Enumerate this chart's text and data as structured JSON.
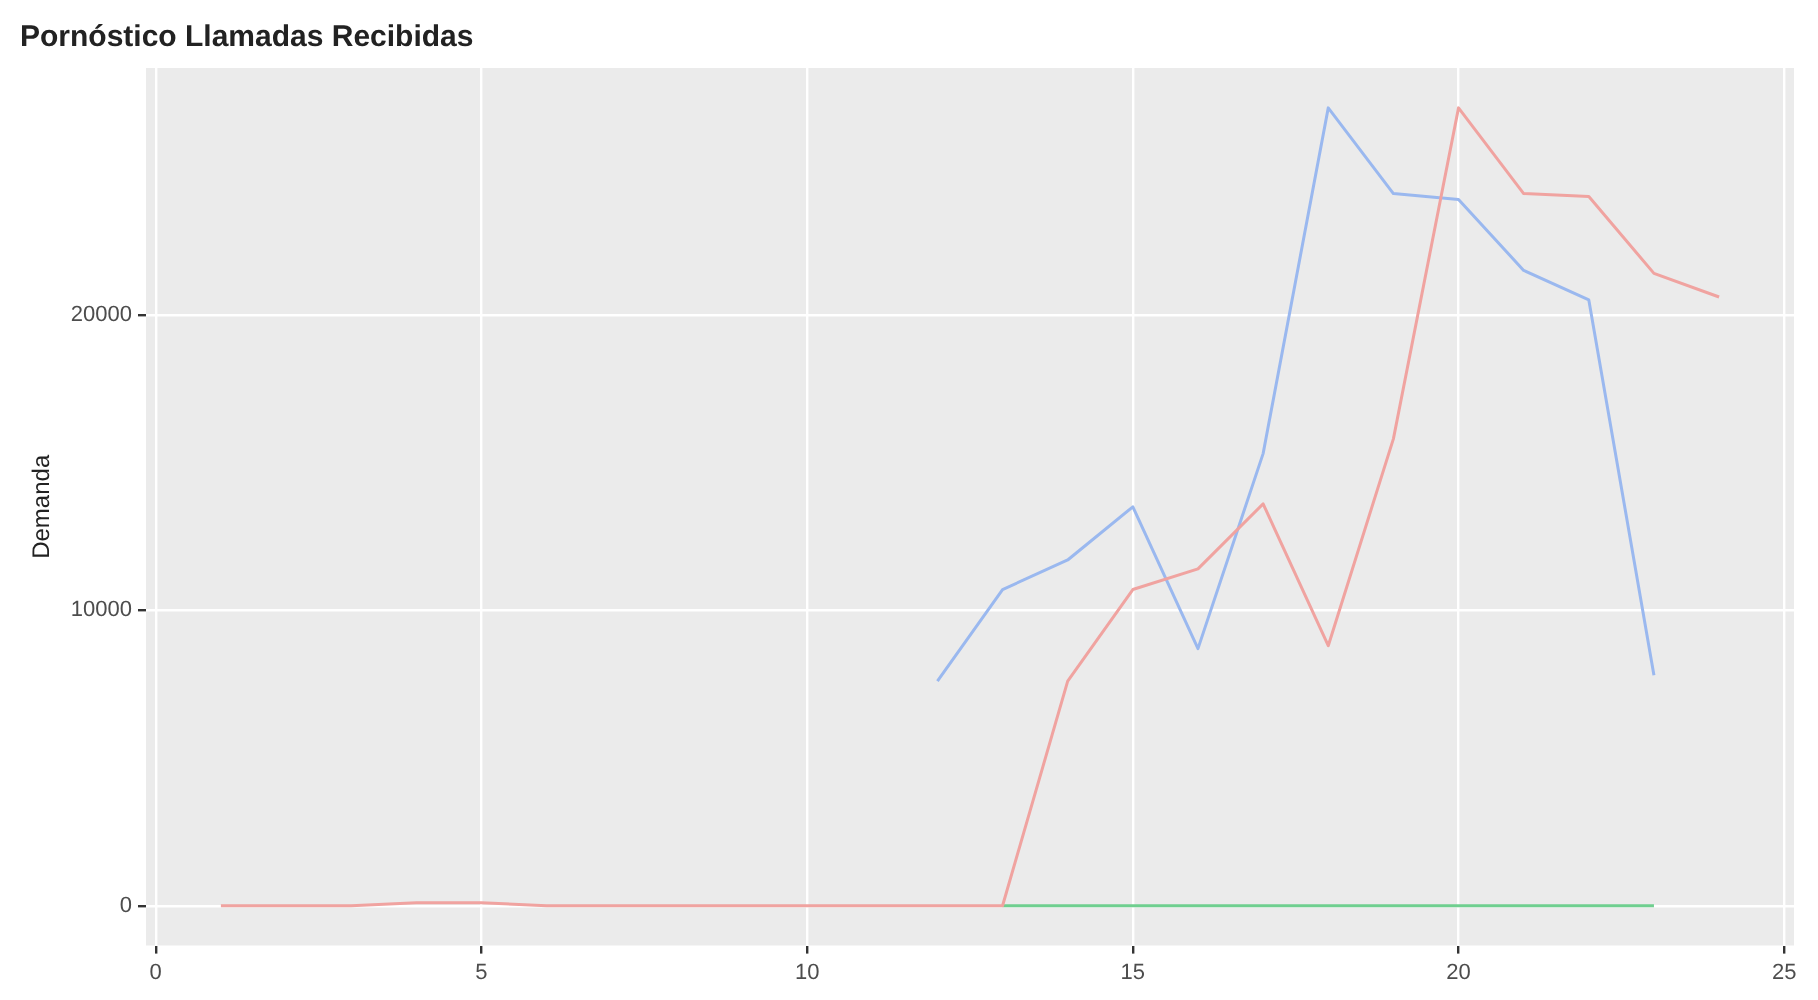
{
  "chart_data": {
    "type": "line",
    "title": "Pornóstico Llamadas Recibidas",
    "ylabel": "Demanda",
    "xlim": [
      -0.15,
      25.15
    ],
    "xticks": [
      0,
      5,
      10,
      15,
      20,
      25
    ],
    "ylim": [
      -1350,
      28350
    ],
    "yticks": [
      0,
      10000,
      20000
    ],
    "grid": true,
    "legend": false,
    "marker": "none",
    "line_style": "solid",
    "series": [
      {
        "color": "#f0a3a0",
        "x": [
          1,
          2,
          3,
          4,
          5,
          6,
          7,
          8,
          9,
          10,
          11,
          12,
          13,
          14,
          15,
          16,
          17,
          18,
          19,
          20,
          21,
          22,
          23,
          24
        ],
        "values": [
          0,
          0,
          0,
          100,
          100,
          0,
          0,
          0,
          0,
          0,
          0,
          0,
          0,
          7600,
          10700,
          11400,
          13600,
          8800,
          15800,
          27000,
          24100,
          24000,
          21400,
          20600
        ]
      },
      {
        "color": "#6fcf8f",
        "x": [
          13,
          14,
          15,
          16,
          17,
          18,
          19,
          20,
          21,
          22,
          23
        ],
        "values": [
          0,
          0,
          0,
          0,
          0,
          0,
          0,
          0,
          0,
          0,
          0
        ]
      },
      {
        "color": "#9ab8ef",
        "x": [
          12,
          13,
          14,
          15,
          16,
          17,
          18,
          19,
          20,
          21,
          22,
          23
        ],
        "values": [
          7600,
          10700,
          11700,
          13500,
          8700,
          15300,
          27000,
          24100,
          23900,
          21500,
          20500,
          7800
        ]
      }
    ]
  }
}
